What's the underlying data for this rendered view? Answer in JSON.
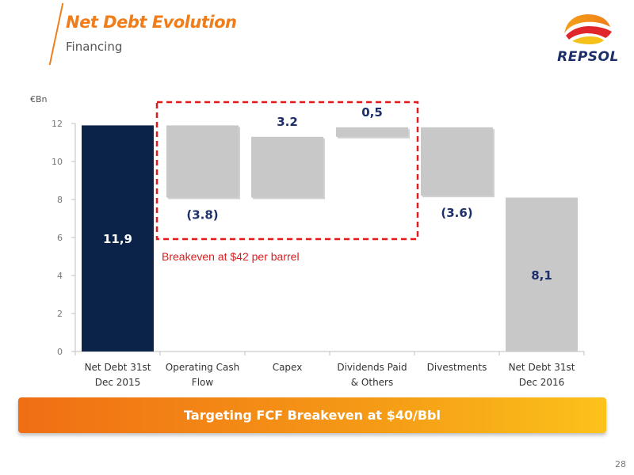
{
  "header": {
    "title": "Net Debt Evolution",
    "subtitle": "Financing"
  },
  "logo": {
    "text": "REPSOL"
  },
  "chart_data": {
    "type": "bar",
    "subtype": "waterfall",
    "unit_label": "€Bn",
    "categories": [
      [
        "Net Debt 31st",
        "Dec 2015"
      ],
      [
        "Operating Cash",
        "Flow"
      ],
      [
        "Capex"
      ],
      [
        "Dividends Paid",
        "& Others"
      ],
      [
        "Divestments"
      ],
      [
        "Net Debt  31st",
        "Dec 2016"
      ]
    ],
    "bars": [
      {
        "start": 0,
        "end": 11.9,
        "kind": "total",
        "label": "11,9",
        "color": "#0b2349"
      },
      {
        "start": 11.9,
        "end": 8.1,
        "kind": "decrease",
        "label": "(3.8)",
        "color": "#c8c8c8"
      },
      {
        "start": 8.1,
        "end": 11.3,
        "kind": "increase",
        "label": "3.2",
        "color": "#c8c8c8"
      },
      {
        "start": 11.3,
        "end": 11.8,
        "kind": "increase",
        "label": "0,5",
        "color": "#c8c8c8"
      },
      {
        "start": 11.8,
        "end": 8.2,
        "kind": "decrease",
        "label": "(3.6)",
        "color": "#c8c8c8"
      },
      {
        "start": 0,
        "end": 8.1,
        "kind": "total",
        "label": "8,1",
        "color": "#c8c8c8"
      }
    ],
    "yticks": [
      0,
      2,
      4,
      6,
      8,
      10,
      12
    ],
    "ylim": [
      0,
      12
    ],
    "grid": false,
    "annotation": {
      "text": "Breakeven at $42 per barrel",
      "color": "#d81e1e"
    },
    "highlight_box": {
      "from_category": 1,
      "to_category": 3,
      "color": "#e01b1b",
      "style": "dashed"
    },
    "label_color": "#1c2f6b"
  },
  "banner": {
    "text": "Targeting FCF Breakeven at $40/Bbl"
  },
  "page_number": "28"
}
